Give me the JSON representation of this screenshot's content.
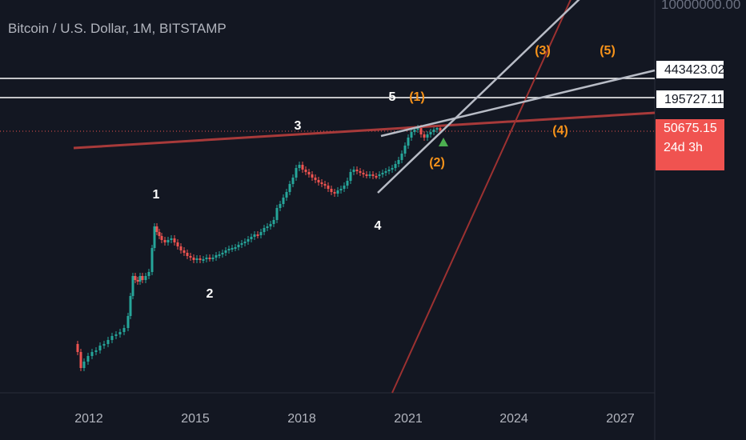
{
  "header": {
    "title": "Bitcoin / U.S. Dollar, 1M, BITSTAMP"
  },
  "price_axis": {
    "top_label": "10000000.00",
    "level_high": "443423.02",
    "level_mid": "195727.11",
    "current_price": "50675.15",
    "countdown": "24d 3h"
  },
  "colors": {
    "background": "#131722",
    "candle_up": "#26a69a",
    "candle_down": "#ef5350",
    "trend_red": "#a83a3a",
    "trend_gray": "#b8bcc6",
    "wave_white": "#ffffff",
    "wave_orange": "#f7931a",
    "price_tag_red": "#f05350"
  },
  "chart_data": {
    "type": "candlestick",
    "x_ticks": [
      "2012",
      "2015",
      "2018",
      "2021",
      "2024",
      "2027"
    ],
    "y_scale": "log",
    "waves_primary": [
      "1",
      "2",
      "3",
      "4",
      "5"
    ],
    "waves_secondary": [
      "(1)",
      "(2)",
      "(3)",
      "(4)",
      "(5)"
    ],
    "horizontal_levels": [
      443423.02,
      195727.11
    ],
    "last_price": 50675.15
  }
}
